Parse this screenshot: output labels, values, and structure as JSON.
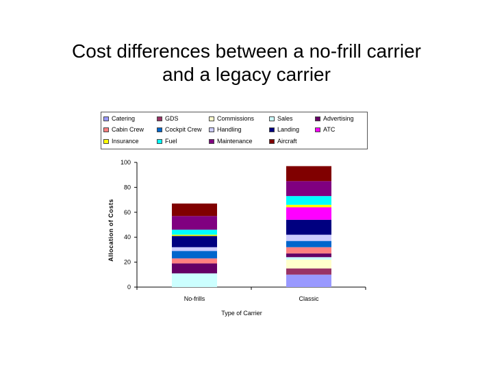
{
  "title": {
    "line1": "Cost differences between a no-frill carrier",
    "line2": "and a legacy carrier"
  },
  "legend": [
    {
      "label": "Catering",
      "color": "#9999ff"
    },
    {
      "label": "GDS",
      "color": "#993366"
    },
    {
      "label": "Commissions",
      "color": "#ffffcc"
    },
    {
      "label": "Sales",
      "color": "#ccffff"
    },
    {
      "label": "Advertising",
      "color": "#660066"
    },
    {
      "label": "Cabin Crew",
      "color": "#ff8080"
    },
    {
      "label": "Cockpit Crew",
      "color": "#0066cc"
    },
    {
      "label": "Handling",
      "color": "#ccccff"
    },
    {
      "label": "Landing",
      "color": "#000080"
    },
    {
      "label": "ATC",
      "color": "#ff00ff"
    },
    {
      "label": "Insurance",
      "color": "#ffff00"
    },
    {
      "label": "Fuel",
      "color": "#00ffff"
    },
    {
      "label": "Maintenance",
      "color": "#800080"
    },
    {
      "label": "Aircraft",
      "color": "#800000"
    }
  ],
  "chart_data": {
    "type": "bar",
    "stacked": true,
    "categories": [
      "No-frills",
      "Classic"
    ],
    "xlabel": "Type of Carrier",
    "ylabel": "Allocation of Costs",
    "ylim": [
      0,
      100
    ],
    "yticks": [
      0,
      20,
      40,
      60,
      80,
      100
    ],
    "grid": false,
    "legend_position": "top",
    "stacks": [
      {
        "category": "No-frills",
        "segments": [
          {
            "name": "Sales",
            "value": 11,
            "color": "#ccffff"
          },
          {
            "name": "Advertising",
            "value": 8,
            "color": "#660066"
          },
          {
            "name": "Cabin Crew",
            "value": 4,
            "color": "#ff8080"
          },
          {
            "name": "Cockpit Crew",
            "value": 6,
            "color": "#0066cc"
          },
          {
            "name": "Handling",
            "value": 3,
            "color": "#ccccff"
          },
          {
            "name": "Landing",
            "value": 9,
            "color": "#000080"
          },
          {
            "name": "Insurance",
            "value": 1,
            "color": "#ffff00"
          },
          {
            "name": "Fuel",
            "value": 4,
            "color": "#00ffff"
          },
          {
            "name": "Maintenance",
            "value": 11,
            "color": "#800080"
          },
          {
            "name": "Aircraft",
            "value": 10,
            "color": "#800000"
          }
        ]
      },
      {
        "category": "Classic",
        "segments": [
          {
            "name": "Catering",
            "value": 10,
            "color": "#9999ff"
          },
          {
            "name": "GDS",
            "value": 5,
            "color": "#993366"
          },
          {
            "name": "Commissions",
            "value": 7,
            "color": "#ffffcc"
          },
          {
            "name": "Sales",
            "value": 2,
            "color": "#ccffff"
          },
          {
            "name": "Advertising",
            "value": 3,
            "color": "#660066"
          },
          {
            "name": "Cabin Crew",
            "value": 5,
            "color": "#ff8080"
          },
          {
            "name": "Cockpit Crew",
            "value": 5,
            "color": "#0066cc"
          },
          {
            "name": "Handling",
            "value": 5,
            "color": "#ccccff"
          },
          {
            "name": "Landing",
            "value": 12,
            "color": "#000080"
          },
          {
            "name": "ATC",
            "value": 10,
            "color": "#ff00ff"
          },
          {
            "name": "Insurance",
            "value": 2,
            "color": "#ffff00"
          },
          {
            "name": "Fuel",
            "value": 7,
            "color": "#00ffff"
          },
          {
            "name": "Maintenance",
            "value": 12,
            "color": "#800080"
          },
          {
            "name": "Aircraft",
            "value": 12,
            "color": "#800000"
          }
        ]
      }
    ]
  }
}
